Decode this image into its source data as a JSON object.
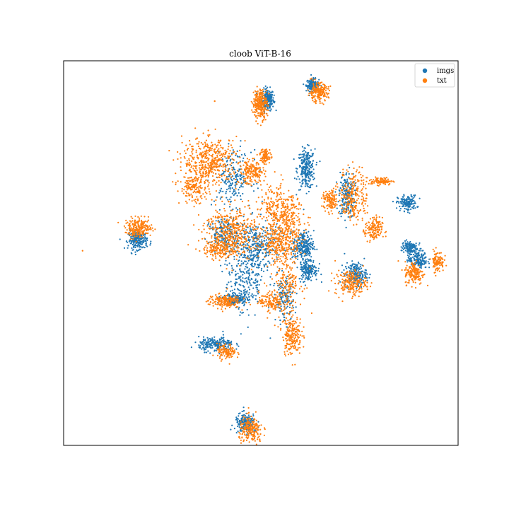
{
  "chart_data": {
    "type": "scatter",
    "title": "cloob ViT-B-16",
    "xlabel": "",
    "ylabel": "",
    "xlim": [
      0,
      100
    ],
    "ylim": [
      0,
      100
    ],
    "grid": false,
    "ticks": false,
    "legend": {
      "placement": "top-right"
    },
    "series": [
      {
        "name": "imgs",
        "color": "#1f77b4",
        "clusters": [
          {
            "x": 51.7,
            "y": 89.9,
            "sx": 0.8,
            "sy": 1.4,
            "n": 220
          },
          {
            "x": 63.1,
            "y": 93.7,
            "sx": 0.8,
            "sy": 0.8,
            "n": 150
          },
          {
            "x": 61.5,
            "y": 71.8,
            "sx": 1.1,
            "sy": 2.6,
            "n": 260
          },
          {
            "x": 71.8,
            "y": 65.2,
            "sx": 1.0,
            "sy": 3.0,
            "n": 200
          },
          {
            "x": 87.1,
            "y": 63.0,
            "sx": 1.2,
            "sy": 1.0,
            "n": 160
          },
          {
            "x": 18.8,
            "y": 53.4,
            "sx": 1.2,
            "sy": 1.2,
            "n": 220
          },
          {
            "x": 49.1,
            "y": 51.8,
            "sx": 3.0,
            "sy": 3.2,
            "n": 320
          },
          {
            "x": 60.8,
            "y": 51.8,
            "sx": 1.3,
            "sy": 2.0,
            "n": 240
          },
          {
            "x": 62.0,
            "y": 45.7,
            "sx": 1.2,
            "sy": 1.5,
            "n": 160
          },
          {
            "x": 74.0,
            "y": 44.5,
            "sx": 1.4,
            "sy": 1.5,
            "n": 200
          },
          {
            "x": 87.6,
            "y": 51.5,
            "sx": 1.0,
            "sy": 0.9,
            "n": 120
          },
          {
            "x": 89.8,
            "y": 48.3,
            "sx": 1.2,
            "sy": 1.2,
            "n": 160
          },
          {
            "x": 43.6,
            "y": 38.0,
            "sx": 1.4,
            "sy": 0.7,
            "n": 180
          },
          {
            "x": 38.7,
            "y": 26.3,
            "sx": 2.2,
            "sy": 0.9,
            "n": 220
          },
          {
            "x": 46.2,
            "y": 5.6,
            "sx": 1.4,
            "sy": 1.3,
            "n": 180
          },
          {
            "x": 43.0,
            "y": 69.5,
            "sx": 2.3,
            "sy": 3.5,
            "n": 200
          },
          {
            "x": 46.0,
            "y": 43.0,
            "sx": 2.5,
            "sy": 5.0,
            "n": 240
          },
          {
            "x": 56.0,
            "y": 38.0,
            "sx": 1.2,
            "sy": 3.0,
            "n": 140
          },
          {
            "x": 41.0,
            "y": 55.0,
            "sx": 2.0,
            "sy": 2.0,
            "n": 180
          }
        ]
      },
      {
        "name": "txt",
        "color": "#ff7f0e",
        "clusters": [
          {
            "x": 49.8,
            "y": 88.8,
            "sx": 0.9,
            "sy": 1.9,
            "n": 260
          },
          {
            "x": 64.5,
            "y": 91.8,
            "sx": 1.3,
            "sy": 1.2,
            "n": 200
          },
          {
            "x": 37.3,
            "y": 74.0,
            "sx": 3.5,
            "sy": 3.0,
            "n": 440
          },
          {
            "x": 33.0,
            "y": 67.0,
            "sx": 1.8,
            "sy": 2.0,
            "n": 160
          },
          {
            "x": 47.8,
            "y": 71.0,
            "sx": 1.6,
            "sy": 1.5,
            "n": 180
          },
          {
            "x": 51.2,
            "y": 75.3,
            "sx": 0.7,
            "sy": 1.0,
            "n": 80
          },
          {
            "x": 19.0,
            "y": 56.5,
            "sx": 1.7,
            "sy": 1.2,
            "n": 220
          },
          {
            "x": 42.5,
            "y": 55.5,
            "sx": 3.5,
            "sy": 3.5,
            "n": 440
          },
          {
            "x": 54.0,
            "y": 53.0,
            "sx": 2.0,
            "sy": 2.5,
            "n": 220
          },
          {
            "x": 57.0,
            "y": 58.0,
            "sx": 2.0,
            "sy": 3.5,
            "n": 220
          },
          {
            "x": 39.5,
            "y": 51.2,
            "sx": 1.7,
            "sy": 1.2,
            "n": 140
          },
          {
            "x": 73.5,
            "y": 65.0,
            "sx": 1.8,
            "sy": 3.5,
            "n": 240
          },
          {
            "x": 67.6,
            "y": 63.5,
            "sx": 1.0,
            "sy": 1.4,
            "n": 110
          },
          {
            "x": 78.6,
            "y": 56.0,
            "sx": 1.1,
            "sy": 1.6,
            "n": 150
          },
          {
            "x": 80.4,
            "y": 68.7,
            "sx": 1.5,
            "sy": 0.5,
            "n": 90
          },
          {
            "x": 88.9,
            "y": 44.8,
            "sx": 1.2,
            "sy": 1.5,
            "n": 160
          },
          {
            "x": 94.8,
            "y": 47.9,
            "sx": 0.8,
            "sy": 1.4,
            "n": 100
          },
          {
            "x": 72.8,
            "y": 42.3,
            "sx": 2.0,
            "sy": 1.6,
            "n": 200
          },
          {
            "x": 40.7,
            "y": 37.5,
            "sx": 2.0,
            "sy": 0.9,
            "n": 180
          },
          {
            "x": 52.5,
            "y": 37.5,
            "sx": 1.5,
            "sy": 1.2,
            "n": 120
          },
          {
            "x": 57.9,
            "y": 28.6,
            "sx": 1.2,
            "sy": 2.5,
            "n": 200
          },
          {
            "x": 41.3,
            "y": 24.3,
            "sx": 1.2,
            "sy": 1.0,
            "n": 110
          },
          {
            "x": 47.5,
            "y": 3.8,
            "sx": 1.5,
            "sy": 1.8,
            "n": 200
          },
          {
            "x": 56.5,
            "y": 43.0,
            "sx": 2.0,
            "sy": 5.0,
            "n": 220
          },
          {
            "x": 53.5,
            "y": 62.0,
            "sx": 2.0,
            "sy": 3.0,
            "n": 160
          }
        ],
        "outliers": [
          {
            "x": 38.3,
            "y": 89.5
          },
          {
            "x": 48.8,
            "y": 84.3
          },
          {
            "x": 4.8,
            "y": 50.6
          }
        ]
      }
    ]
  }
}
